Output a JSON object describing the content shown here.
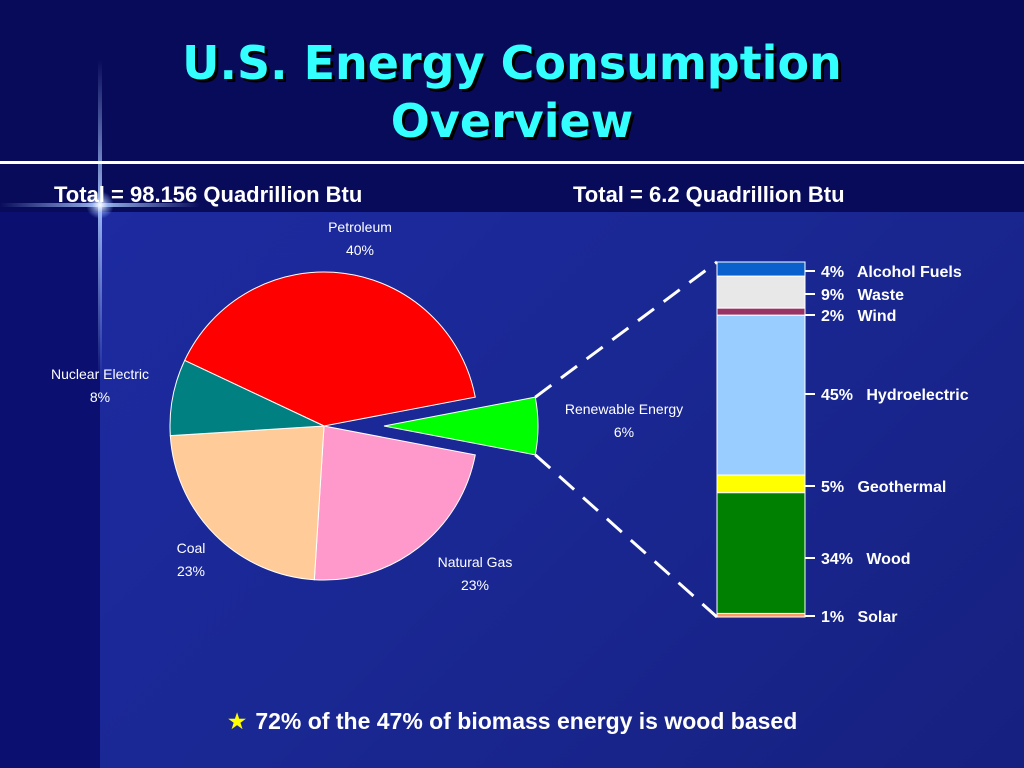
{
  "slide": {
    "title_line1": "U.S. Energy Consumption",
    "title_line2": "Overview",
    "total_left": "Total = 98.156 Quadrillion Btu",
    "total_right": "Total = 6.2 Quadrillion Btu",
    "footnote": "72% of the 47% of biomass energy is wood based",
    "colors": {
      "title": "#33ffff",
      "background": "#0b0e66",
      "text": "#ffffff",
      "footnote_star": "#ffff00"
    },
    "icons": [
      "star-icon"
    ]
  },
  "chart_data": [
    {
      "type": "pie",
      "subtitle": "Total = 98.156 Quadrillion Btu",
      "slices": [
        {
          "label": "Petroleum",
          "percent_label": "40%",
          "value": 40,
          "color": "#ff0000"
        },
        {
          "label": "Renewable Energy",
          "percent_label": "6%",
          "value": 6,
          "color": "#00ff00",
          "exploded": true
        },
        {
          "label": "Natural Gas",
          "percent_label": "23%",
          "value": 23,
          "color": "#ff99cc"
        },
        {
          "label": "Coal",
          "percent_label": "23%",
          "value": 23,
          "color": "#ffcc99"
        },
        {
          "label": "Nuclear Electric",
          "percent_label": "8%",
          "value": 8,
          "color": "#008080"
        }
      ]
    },
    {
      "type": "bar",
      "stacked": true,
      "subtitle": "Total = 6.2 Quadrillion Btu",
      "segments": [
        {
          "label": "Alcohol Fuels",
          "percent_label": "4%",
          "value": 4,
          "color": "#0a60cc"
        },
        {
          "label": "Waste",
          "percent_label": "9%",
          "value": 9,
          "color": "#e8e8e8"
        },
        {
          "label": "Wind",
          "percent_label": "2%",
          "value": 2,
          "color": "#993366"
        },
        {
          "label": "Hydroelectric",
          "percent_label": "45%",
          "value": 45,
          "color": "#99ccff"
        },
        {
          "label": "Geothermal",
          "percent_label": "5%",
          "value": 5,
          "color": "#ffff00"
        },
        {
          "label": "Wood",
          "percent_label": "34%",
          "value": 34,
          "color": "#008000"
        },
        {
          "label": "Solar",
          "percent_label": "1%",
          "value": 1,
          "color": "#ff9966"
        }
      ]
    }
  ]
}
